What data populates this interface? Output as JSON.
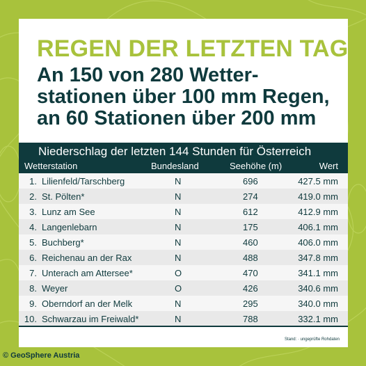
{
  "kicker": "REGEN DER LETZTEN TAGE",
  "headline": "An 150 von 280 Wetter-\nstationen über 100 mm Regen,\nan 60 Stationen über 200 mm",
  "table": {
    "title": "Niederschlag der letzten 144 Stunden für Österreich",
    "headers": {
      "station": "Wetterstation",
      "state": "Bundesland",
      "elevation": "Seehöhe (m)",
      "value": "Wert"
    },
    "rows": [
      {
        "rank": "1.",
        "station": "Lilienfeld/Tarschberg",
        "state": "N",
        "elevation": "696",
        "value": "427.5 mm"
      },
      {
        "rank": "2.",
        "station": "St. Pölten*",
        "state": "N",
        "elevation": "274",
        "value": "419.0 mm"
      },
      {
        "rank": "3.",
        "station": "Lunz am See",
        "state": "N",
        "elevation": "612",
        "value": "412.9 mm"
      },
      {
        "rank": "4.",
        "station": "Langenlebarn",
        "state": "N",
        "elevation": "175",
        "value": "406.1 mm"
      },
      {
        "rank": "5.",
        "station": "Buchberg*",
        "state": "N",
        "elevation": "460",
        "value": "406.0 mm"
      },
      {
        "rank": "6.",
        "station": "Reichenau an der Rax",
        "state": "N",
        "elevation": "488",
        "value": "347.8 mm"
      },
      {
        "rank": "7.",
        "station": "Unterach am Attersee*",
        "state": "O",
        "elevation": "470",
        "value": "341.1 mm"
      },
      {
        "rank": "8.",
        "station": "Weyer",
        "state": "O",
        "elevation": "426",
        "value": "340.6 mm"
      },
      {
        "rank": "9.",
        "station": "Oberndorf an der Melk",
        "state": "N",
        "elevation": "295",
        "value": "340.0 mm"
      },
      {
        "rank": "10.",
        "station": "Schwarzau im Freiwald*",
        "state": "N",
        "elevation": "788",
        "value": "332.1 mm"
      }
    ]
  },
  "footnote": "Stand:   · ungeprüfte Rohdaten",
  "credit": "© GeoSphere Austria",
  "colors": {
    "accent": "#a8c23c",
    "dark": "#0f3a3d",
    "card": "#ffffff",
    "row_light": "#f6f6f6",
    "row_dark": "#e9e9e9"
  }
}
